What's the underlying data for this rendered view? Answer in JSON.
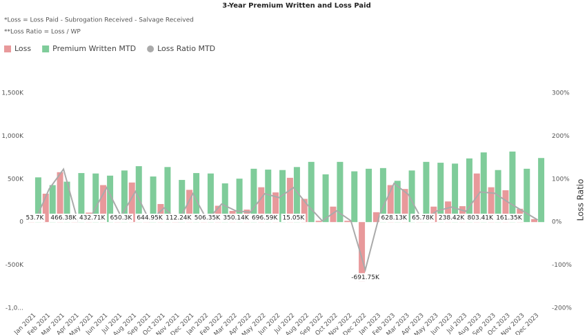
{
  "chart_data": {
    "type": "bar",
    "title": "3-Year Premium Written and Loss Paid",
    "notes": [
      "*Loss = Loss Paid - Subrogation Received - Salvage Received",
      "**Loss Ratio = Loss / WP"
    ],
    "y2_label": "Loss Ratio",
    "legend": "top-left",
    "categories": [
      "Jan 2021",
      "Feb 2021",
      "Mar 2021",
      "Apr 2021",
      "May 2021",
      "Jun 2021",
      "Jul 2021",
      "Aug 2021",
      "Sep 2021",
      "Oct 2021",
      "Nov 2021",
      "Dec 2021",
      "Jan 2022",
      "Feb 2022",
      "Mar 2022",
      "Apr 2022",
      "May 2022",
      "Jun 2022",
      "Jul 2022",
      "Aug 2022",
      "Sep 2022",
      "Oct 2022",
      "Nov 2022",
      "Dec 2022",
      "Jan 2023",
      "Feb 2023",
      "Mar 2023",
      "Apr 2023",
      "May 2023",
      "Jun 2023",
      "Jul 2023",
      "Aug 2023",
      "Sep 2023",
      "Oct 2023",
      "Nov 2023",
      "Dec 2023"
    ],
    "series": [
      {
        "name": "Loss",
        "type": "bar",
        "color": "#e8999b",
        "values": [
          5,
          330,
          580,
          10,
          110,
          430,
          80,
          460,
          10,
          210,
          10,
          375,
          20,
          190,
          130,
          145,
          405,
          345,
          515,
          270,
          15,
          180,
          15,
          -690,
          115,
          430,
          385,
          15,
          180,
          240,
          185,
          565,
          405,
          370,
          155,
          35
        ]
      },
      {
        "name": "Premium Written MTD",
        "type": "bar",
        "color": "#7fcc9a",
        "values": [
          520,
          430,
          470,
          570,
          565,
          540,
          600,
          650,
          530,
          640,
          490,
          570,
          565,
          450,
          505,
          620,
          610,
          605,
          640,
          700,
          555,
          700,
          590,
          620,
          628,
          480,
          600,
          700,
          690,
          680,
          740,
          810,
          605,
          820,
          620,
          745
        ]
      },
      {
        "name": "Loss Ratio MTD",
        "type": "line",
        "axis": "y2",
        "color": "#aaaaaa",
        "values": [
          1,
          77,
          123,
          2,
          19,
          80,
          13,
          71,
          2,
          33,
          2,
          66,
          4,
          42,
          26,
          23,
          66,
          57,
          80,
          39,
          3,
          26,
          3,
          -111,
          18,
          90,
          64,
          2,
          26,
          35,
          25,
          70,
          67,
          45,
          25,
          5
        ]
      }
    ],
    "annotations": [
      {
        "text": "53.7K",
        "category": "Jan 2021"
      },
      {
        "text": "466.38K",
        "category": "Mar 2021"
      },
      {
        "text": "432.71K",
        "category": "May 2021"
      },
      {
        "text": "650.3K",
        "category": "Jul 2021"
      },
      {
        "text": "644.95K",
        "category": "Sep 2021"
      },
      {
        "text": "112.24K",
        "category": "Nov 2021"
      },
      {
        "text": "506.35K",
        "category": "Jan 2022"
      },
      {
        "text": "350.14K",
        "category": "Mar 2022"
      },
      {
        "text": "696.59K",
        "category": "May 2022"
      },
      {
        "text": "15.05K",
        "category": "Jul 2022"
      },
      {
        "text": "-691.75K",
        "category": "Dec 2022"
      },
      {
        "text": "628.13K",
        "category": "Feb 2023"
      },
      {
        "text": "65.78K",
        "category": "Apr 2023"
      },
      {
        "text": "238.42K",
        "category": "Jun 2023"
      },
      {
        "text": "803.41K",
        "category": "Aug 2023"
      },
      {
        "text": "161.35K",
        "category": "Oct 2023"
      }
    ],
    "ylim": [
      -1000,
      1500
    ],
    "yticks": [
      {
        "value": -1000,
        "label": "-1,0..."
      },
      {
        "value": -500,
        "label": "-500K"
      },
      0,
      {
        "value": 500,
        "label": "500K"
      },
      {
        "value": 1000,
        "label": "1,000K"
      },
      {
        "value": 1500,
        "label": "1,500K"
      }
    ],
    "y2lim": [
      -200,
      300
    ],
    "y2ticks": [
      {
        "value": -200,
        "label": "-200%"
      },
      {
        "value": -100,
        "label": "-100%"
      },
      {
        "value": 0,
        "label": "0%"
      },
      {
        "value": 100,
        "label": "100%"
      },
      {
        "value": 200,
        "label": "200%"
      },
      {
        "value": 300,
        "label": "300%"
      }
    ]
  }
}
